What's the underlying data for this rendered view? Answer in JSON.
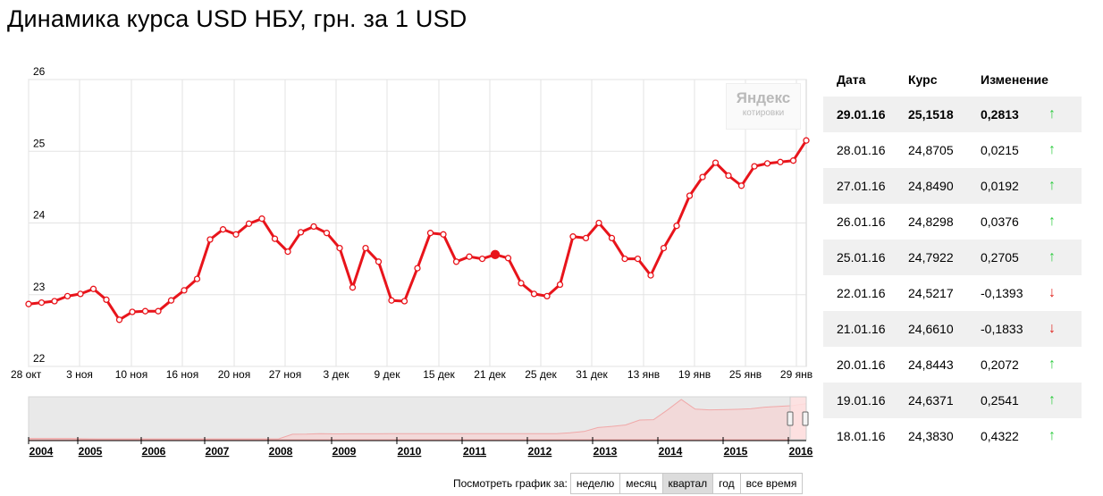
{
  "header": {
    "title": "Динамика курса USD НБУ, грн. за 1 USD"
  },
  "watermark": {
    "brand": "Яндекс",
    "sub": "котировки"
  },
  "chart_data": {
    "type": "line",
    "title": "Динамика курса USD НБУ, грн. за 1 USD",
    "xlabel": "",
    "ylabel": "",
    "ylim": [
      22,
      26
    ],
    "y_ticks": [
      "22",
      "23",
      "24",
      "25",
      "26"
    ],
    "x_tick_labels": [
      "28 окт",
      "3 ноя",
      "10 ноя",
      "16 ноя",
      "20 ноя",
      "27 ноя",
      "3 дек",
      "9 дек",
      "15 дек",
      "21 дек",
      "25 дек",
      "31 дек",
      "13 янв",
      "19 янв",
      "25 янв",
      "29 янв"
    ],
    "grid": true,
    "line_color": "#e8141b",
    "series": [
      {
        "values": [
          22.87,
          22.89,
          22.91,
          22.98,
          23.01,
          23.08,
          22.93,
          22.65,
          22.76,
          22.77,
          22.77,
          22.92,
          23.06,
          23.22,
          23.77,
          23.91,
          23.84,
          23.99,
          24.06,
          23.78,
          23.6,
          23.87,
          23.95,
          23.86,
          23.65,
          23.1,
          23.65,
          23.46,
          22.92,
          22.91,
          23.37,
          23.86,
          23.84,
          23.46,
          23.53,
          23.5,
          23.56,
          23.51,
          23.16,
          23.01,
          22.98,
          23.14,
          23.81,
          23.79,
          24.0,
          23.79,
          23.5,
          23.5,
          23.27,
          23.65,
          23.96,
          24.38,
          24.64,
          24.84,
          24.66,
          24.52,
          24.79,
          24.83,
          24.85,
          24.87,
          25.15
        ]
      }
    ],
    "highlight_index": 36
  },
  "navigator": {
    "years": [
      "2004",
      "2005",
      "2006",
      "2007",
      "2008",
      "2009",
      "2010",
      "2011",
      "2012",
      "2013",
      "2014",
      "2015",
      "2016"
    ],
    "history": [
      5.33,
      5.33,
      5.32,
      5.3,
      5.12,
      5.05,
      5.05,
      5.05,
      5.05,
      5.05,
      5.05,
      5.05,
      5.05,
      5.05,
      5.05,
      5.05,
      5.05,
      5.05,
      5.05,
      7.7,
      7.75,
      8.0,
      7.9,
      7.95,
      7.95,
      7.97,
      7.99,
      7.99,
      7.99,
      7.99,
      7.99,
      7.99,
      7.99,
      7.99,
      7.99,
      7.99,
      7.99,
      7.99,
      8.0,
      8.5,
      9.3,
      11.5,
      12.2,
      13.0,
      15.8,
      16.0,
      21.5,
      27.5,
      22.0,
      21.6,
      21.7,
      21.9,
      22.2,
      23.1,
      23.5,
      24.0,
      25.1
    ]
  },
  "table": {
    "headers": {
      "date": "Дата",
      "rate": "Курс",
      "change": "Изменение"
    },
    "rows": [
      {
        "date": "29.01.16",
        "rate": "25,1518",
        "change": "0,2813",
        "dir": "↑"
      },
      {
        "date": "28.01.16",
        "rate": "24,8705",
        "change": "0,0215",
        "dir": "↑"
      },
      {
        "date": "27.01.16",
        "rate": "24,8490",
        "change": "0,0192",
        "dir": "↑"
      },
      {
        "date": "26.01.16",
        "rate": "24,8298",
        "change": "0,0376",
        "dir": "↑"
      },
      {
        "date": "25.01.16",
        "rate": "24,7922",
        "change": "0,2705",
        "dir": "↑"
      },
      {
        "date": "22.01.16",
        "rate": "24,5217",
        "change": "-0,1393",
        "dir": "↓"
      },
      {
        "date": "21.01.16",
        "rate": "24,6610",
        "change": "-0,1833",
        "dir": "↓"
      },
      {
        "date": "20.01.16",
        "rate": "24,8443",
        "change": "0,2072",
        "dir": "↑"
      },
      {
        "date": "19.01.16",
        "rate": "24,6371",
        "change": "0,2541",
        "dir": "↑"
      },
      {
        "date": "18.01.16",
        "rate": "24,3830",
        "change": "0,4322",
        "dir": "↑"
      }
    ]
  },
  "periods": {
    "label": "Посмотреть график за:",
    "buttons": [
      "неделю",
      "месяц",
      "квартал",
      "год",
      "все время"
    ],
    "active": "квартал"
  }
}
